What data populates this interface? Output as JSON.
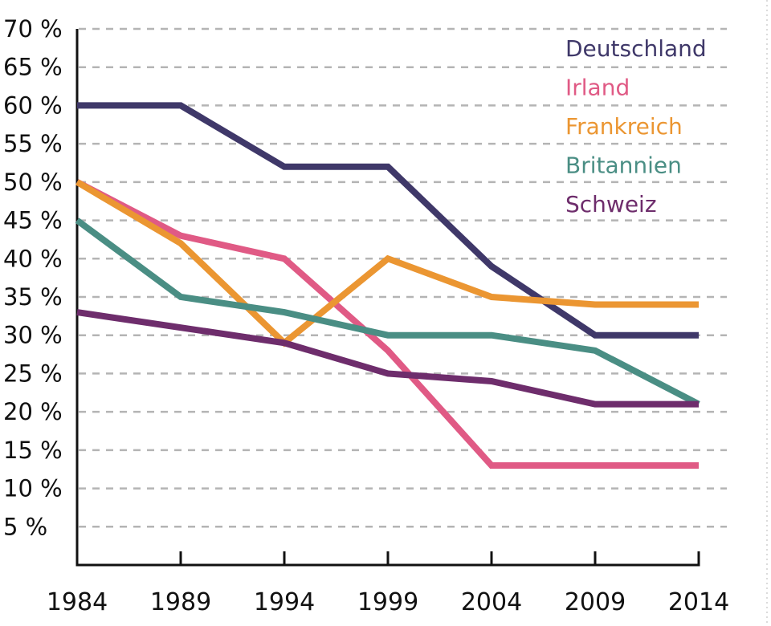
{
  "chart_data": {
    "type": "line",
    "title": "",
    "xlabel": "",
    "ylabel": "",
    "x": [
      "1984",
      "1989",
      "1994",
      "1999",
      "2004",
      "2009",
      "2014"
    ],
    "ylim": [
      0,
      70
    ],
    "yticks": [
      5,
      10,
      15,
      20,
      25,
      30,
      35,
      40,
      45,
      50,
      55,
      60,
      65,
      70
    ],
    "ytick_labels": [
      "5 %",
      "10 %",
      "15 %",
      "20 %",
      "25 %",
      "30 %",
      "35 %",
      "40 %",
      "45 %",
      "50 %",
      "55 %",
      "60 %",
      "65 %",
      "70 %"
    ],
    "grid": true,
    "legend_position": "top-right",
    "series": [
      {
        "name": "Deutschland",
        "color": "#3f3869",
        "values": [
          60,
          60,
          52,
          52,
          39,
          30,
          30
        ]
      },
      {
        "name": "Irland",
        "color": "#e05a85",
        "values": [
          50,
          43,
          40,
          28,
          13,
          13,
          13
        ]
      },
      {
        "name": "Frankreich",
        "color": "#eb9632",
        "values": [
          50,
          42,
          29,
          40,
          35,
          34,
          34
        ]
      },
      {
        "name": "Britannien",
        "color": "#4a8e84",
        "values": [
          45,
          35,
          33,
          30,
          30,
          28,
          21
        ]
      },
      {
        "name": "Schweiz",
        "color": "#6e2d6c",
        "values": [
          33,
          31,
          29,
          25,
          24,
          21,
          21
        ]
      }
    ]
  }
}
